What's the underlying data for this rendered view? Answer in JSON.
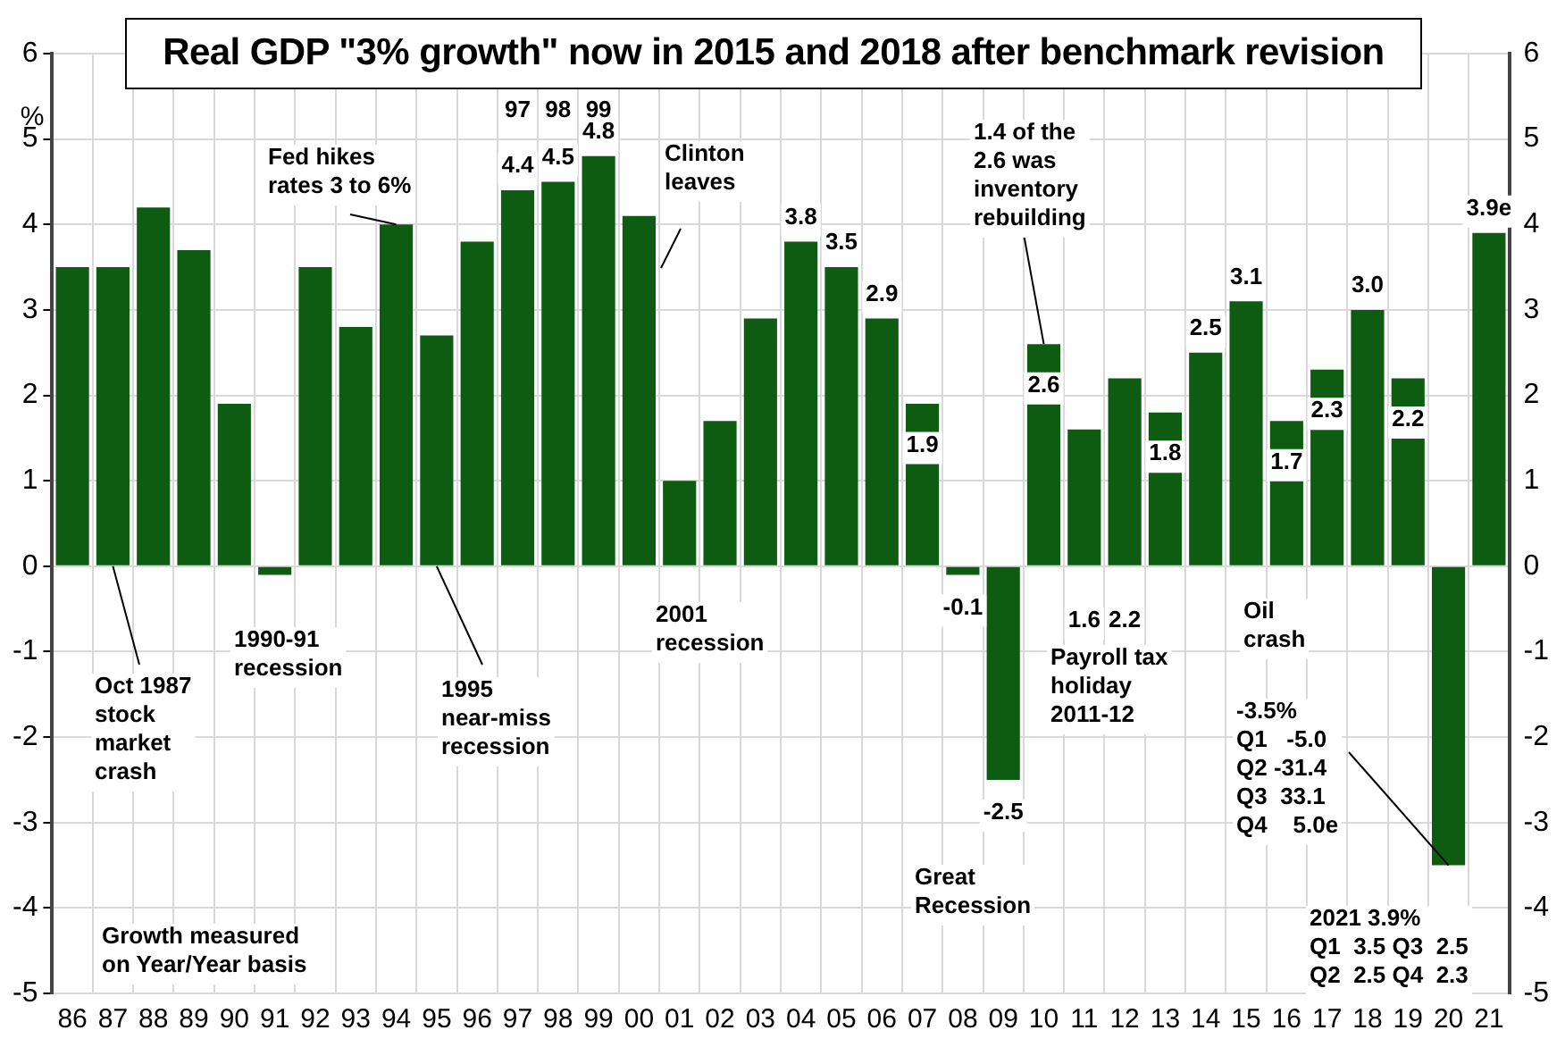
{
  "chart_data": {
    "type": "bar",
    "title": "Real GDP \"3% growth\" now in 2015 and 2018 after benchmark revision",
    "ylabel": "%",
    "categories": [
      "86",
      "87",
      "88",
      "89",
      "90",
      "91",
      "92",
      "93",
      "94",
      "95",
      "96",
      "97",
      "98",
      "99",
      "00",
      "01",
      "02",
      "03",
      "04",
      "05",
      "06",
      "07",
      "08",
      "09",
      "10",
      "11",
      "12",
      "13",
      "14",
      "15",
      "16",
      "17",
      "18",
      "19",
      "20",
      "21"
    ],
    "values": [
      3.5,
      3.5,
      4.2,
      3.7,
      1.9,
      -0.1,
      3.5,
      2.8,
      4.0,
      2.7,
      3.8,
      4.4,
      4.5,
      4.8,
      4.1,
      1.0,
      1.7,
      2.9,
      3.8,
      3.5,
      2.9,
      1.9,
      -0.1,
      -2.5,
      2.6,
      1.6,
      2.2,
      1.8,
      2.5,
      3.1,
      1.7,
      2.3,
      3.0,
      2.2,
      -3.5,
      3.9
    ],
    "value_labels": [
      null,
      null,
      null,
      null,
      null,
      null,
      null,
      null,
      null,
      null,
      null,
      "4.4",
      "4.5",
      "4.8",
      null,
      null,
      null,
      null,
      "3.8",
      "3.5",
      "2.9",
      "1.9",
      "-0.1",
      "-2.5",
      "2.6",
      "1.6",
      "2.2",
      "1.8",
      "2.5",
      "3.1",
      "1.7",
      "2.3",
      "3.0",
      "2.2",
      null,
      "3.9e"
    ],
    "color": "#0e5c12",
    "ylim": [
      -5,
      6
    ],
    "yticks": [
      -5,
      -4,
      -3,
      -2,
      -1,
      0,
      1,
      2,
      3,
      4,
      5,
      6
    ],
    "y2lim": [
      -5,
      6
    ],
    "y2ticks": [
      -5,
      -4,
      -3,
      -2,
      -1,
      0,
      1,
      2,
      3,
      4,
      5,
      6
    ],
    "grid": true,
    "legend": false,
    "annotations": [
      {
        "text": "Fed hikes\nrates 3 to 6%",
        "x": "94",
        "y": 4.0
      },
      "Clinton\nleaves",
      {
        "text": "1.4 of the\n2.6 was\ninventory\nrebuilding",
        "x": "10",
        "y": 2.6
      },
      {
        "text": "Oct 1987\nstock\nmarket\ncrash",
        "x": "87",
        "y": 0
      },
      "1990-91\nrecession",
      {
        "text": "1995\nnear-miss\nrecession",
        "x": "95",
        "y": 0
      },
      "2001\nrecession",
      "Great\nRecession",
      "Payroll tax\nholiday\n2011-12",
      "Oil\ncrash",
      {
        "text": "-3.5%\nQ1   -5.0\nQ2 -31.4\nQ3  33.1\nQ4    5.0e",
        "x": "20",
        "y": -3.5
      },
      "2021 3.9%\nQ1  3.5 Q3  2.5\nQ2  2.5 Q4  2.3",
      "Growth measured\non Year/Year basis",
      {
        "text": "97",
        "x": "97",
        "y": 5.3
      },
      {
        "text": "98",
        "x": "98",
        "y": 5.3
      },
      {
        "text": "99",
        "x": "99",
        "y": 5.3
      }
    ]
  }
}
